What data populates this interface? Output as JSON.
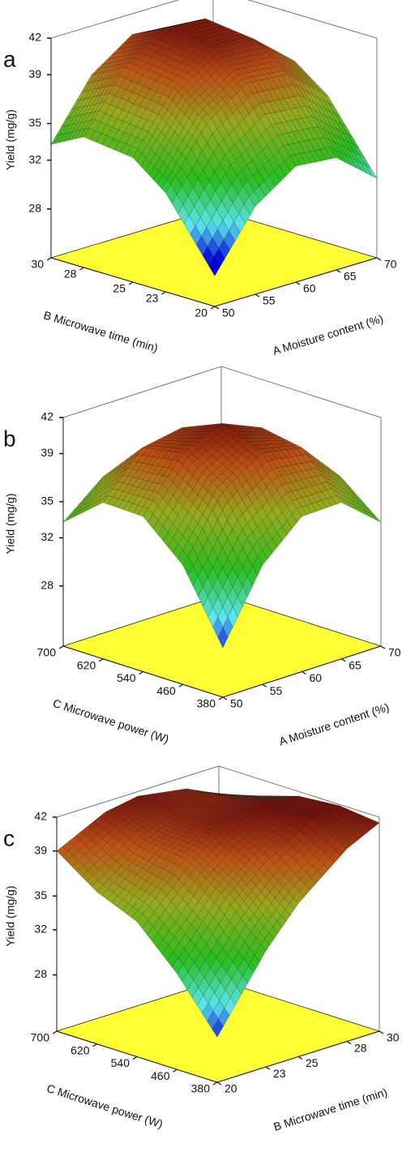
{
  "chart_data": [
    {
      "type": "surface3d",
      "panel": "a",
      "zlabel": "Yield (mg/g)",
      "zlim": [
        24,
        42
      ],
      "zticks": [
        28,
        32,
        35,
        39,
        42
      ],
      "xlabel": "A Moisture content (%)",
      "xlim": [
        50,
        70
      ],
      "xticks": [
        50,
        55,
        60,
        65,
        70
      ],
      "ylabel": "B Microwave time (min)",
      "ylim": [
        20,
        30
      ],
      "yticks": [
        20,
        23,
        25,
        28,
        30
      ],
      "floor_color": "#ffff33",
      "z": [
        [
          26.5,
          31.2,
          33.5,
          33.2,
          30.5
        ],
        [
          32.1,
          36.8,
          39.1,
          38.8,
          36.1
        ],
        [
          34.2,
          38.9,
          41.1,
          40.9,
          38.1
        ],
        [
          34.7,
          39.4,
          41.6,
          41.4,
          38.7
        ],
        [
          33.3,
          38.0,
          40.3,
          40.0,
          37.3
        ]
      ]
    },
    {
      "type": "surface3d",
      "panel": "b",
      "zlabel": "Yield (mg/g)",
      "zlim": [
        23,
        42
      ],
      "zticks": [
        28,
        32,
        35,
        39,
        42
      ],
      "xlabel": "A Moisture content (%)",
      "xlim": [
        50,
        70
      ],
      "xticks": [
        50,
        55,
        60,
        65,
        70
      ],
      "ylabel": "C Microwave power (W)",
      "ylim": [
        380,
        700
      ],
      "yticks": [
        380,
        460,
        540,
        620,
        700
      ],
      "floor_color": "#ffff33",
      "z": [
        [
          27.1,
          32.9,
          35.9,
          36.0,
          33.3
        ],
        [
          32.9,
          37.9,
          40.1,
          39.5,
          36.0
        ],
        [
          35.9,
          40.1,
          41.5,
          40.1,
          35.9
        ],
        [
          36.0,
          39.5,
          40.1,
          37.9,
          32.9
        ],
        [
          33.3,
          36.0,
          35.9,
          32.9,
          27.1
        ]
      ]
    },
    {
      "type": "surface3d",
      "panel": "c",
      "zlabel": "Yield (mg/g)",
      "zlim": [
        23,
        42
      ],
      "zticks": [
        28,
        32,
        35,
        39,
        42
      ],
      "xlabel": "B Microwave time (min)",
      "xlim": [
        20,
        30
      ],
      "xticks": [
        20,
        23,
        25,
        28,
        30
      ],
      "ylabel": "C Microwave power (W)",
      "ylim": [
        380,
        700
      ],
      "yticks": [
        380,
        460,
        540,
        620,
        700
      ],
      "floor_color": "#ffff33",
      "z": [
        [
          27.0,
          33.3,
          36.6,
          40.1,
          41.5
        ],
        [
          31.5,
          36.8,
          39.4,
          41.8,
          41.9
        ],
        [
          35.0,
          39.2,
          41.1,
          41.9,
          41.6
        ],
        [
          36.5,
          39.7,
          40.9,
          41.2,
          40.5
        ],
        [
          39.0,
          41.1,
          41.6,
          40.9,
          39.5
        ]
      ]
    }
  ]
}
